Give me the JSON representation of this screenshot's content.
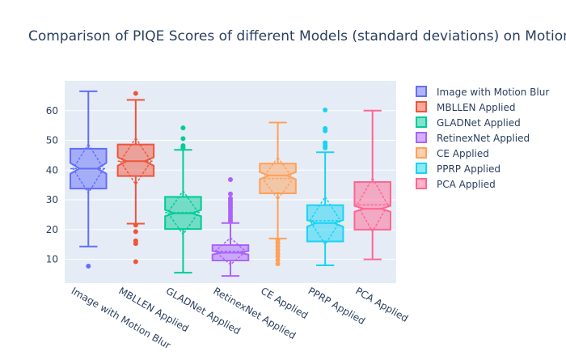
{
  "chart_data": {
    "type": "box",
    "title": "Comparison of PIQE Scores of different Models (standard deviations) on Motion",
    "xlabel": "",
    "ylabel": "",
    "ylim": [
      2,
      70
    ],
    "yticks": [
      10,
      20,
      30,
      40,
      50,
      60
    ],
    "grid": true,
    "legend_position": "top-right",
    "categories": [
      "Image with Motion Blur",
      "MBLLEN Applied",
      "GLADNet Applied",
      "RetinexNet Applied",
      "CE Applied",
      "PPRP Applied",
      "PCA Applied"
    ],
    "series": [
      {
        "name": "Image with Motion Blur",
        "color": "#636efa",
        "q1": 33.8,
        "median": 40.5,
        "q3": 47.2,
        "lower": 14.3,
        "upper": 66.5,
        "mean": 40.5,
        "std": 8.2,
        "notch": [
          38.8,
          42.4
        ],
        "outliers": [
          7.7
        ]
      },
      {
        "name": "MBLLEN Applied",
        "color": "#ef553b",
        "q1": 38.0,
        "median": 43.0,
        "q3": 48.6,
        "lower": 22.0,
        "upper": 63.6,
        "mean": 43.0,
        "std": 7.8,
        "notch": [
          41.5,
          44.3
        ],
        "outliers": [
          65.8,
          21.5,
          19.3,
          16.2,
          15.3,
          9.2
        ]
      },
      {
        "name": "GLADNet Applied",
        "color": "#00cc96",
        "q1": 20.2,
        "median": 25.5,
        "q3": 31.0,
        "lower": 5.5,
        "upper": 46.8,
        "mean": 25.7,
        "std": 7.3,
        "notch": [
          24.5,
          26.6
        ],
        "outliers": [
          54.2,
          50.6,
          48.2,
          47.5
        ]
      },
      {
        "name": "RetinexNet Applied",
        "color": "#ab63fa",
        "q1": 9.6,
        "median": 12.2,
        "q3": 14.8,
        "lower": 4.4,
        "upper": 22.2,
        "mean": 12.7,
        "std": 4.5,
        "notch": [
          11.6,
          12.8
        ],
        "outliers": [
          36.8,
          32.0,
          30.5,
          29.8,
          29.0,
          28.2,
          27.4,
          26.6,
          25.8,
          25.0,
          24.2,
          23.4,
          22.8
        ]
      },
      {
        "name": "CE Applied",
        "color": "#ffa15a",
        "q1": 32.2,
        "median": 38.2,
        "q3": 42.2,
        "lower": 17.0,
        "upper": 56.0,
        "mean": 37.2,
        "std": 7.0,
        "notch": [
          36.9,
          39.3
        ],
        "outliers": [
          16.5,
          15.5,
          14.3,
          13.2,
          12.0,
          11.0,
          9.8,
          8.5
        ]
      },
      {
        "name": "PPRP Applied",
        "color": "#19d3f3",
        "q1": 16.0,
        "median": 22.2,
        "q3": 28.2,
        "lower": 8.0,
        "upper": 46.0,
        "mean": 23.0,
        "std": 8.0,
        "notch": [
          21.0,
          23.2
        ],
        "outliers": [
          60.2,
          54.0,
          53.2,
          49.2,
          48.3,
          47.5
        ]
      },
      {
        "name": "PCA Applied",
        "color": "#ff6692",
        "q1": 20.0,
        "median": 27.0,
        "q3": 36.0,
        "lower": 10.0,
        "upper": 60.0,
        "mean": 28.3,
        "std": 9.0,
        "notch": [
          26.0,
          28.0
        ],
        "outliers": []
      }
    ]
  }
}
